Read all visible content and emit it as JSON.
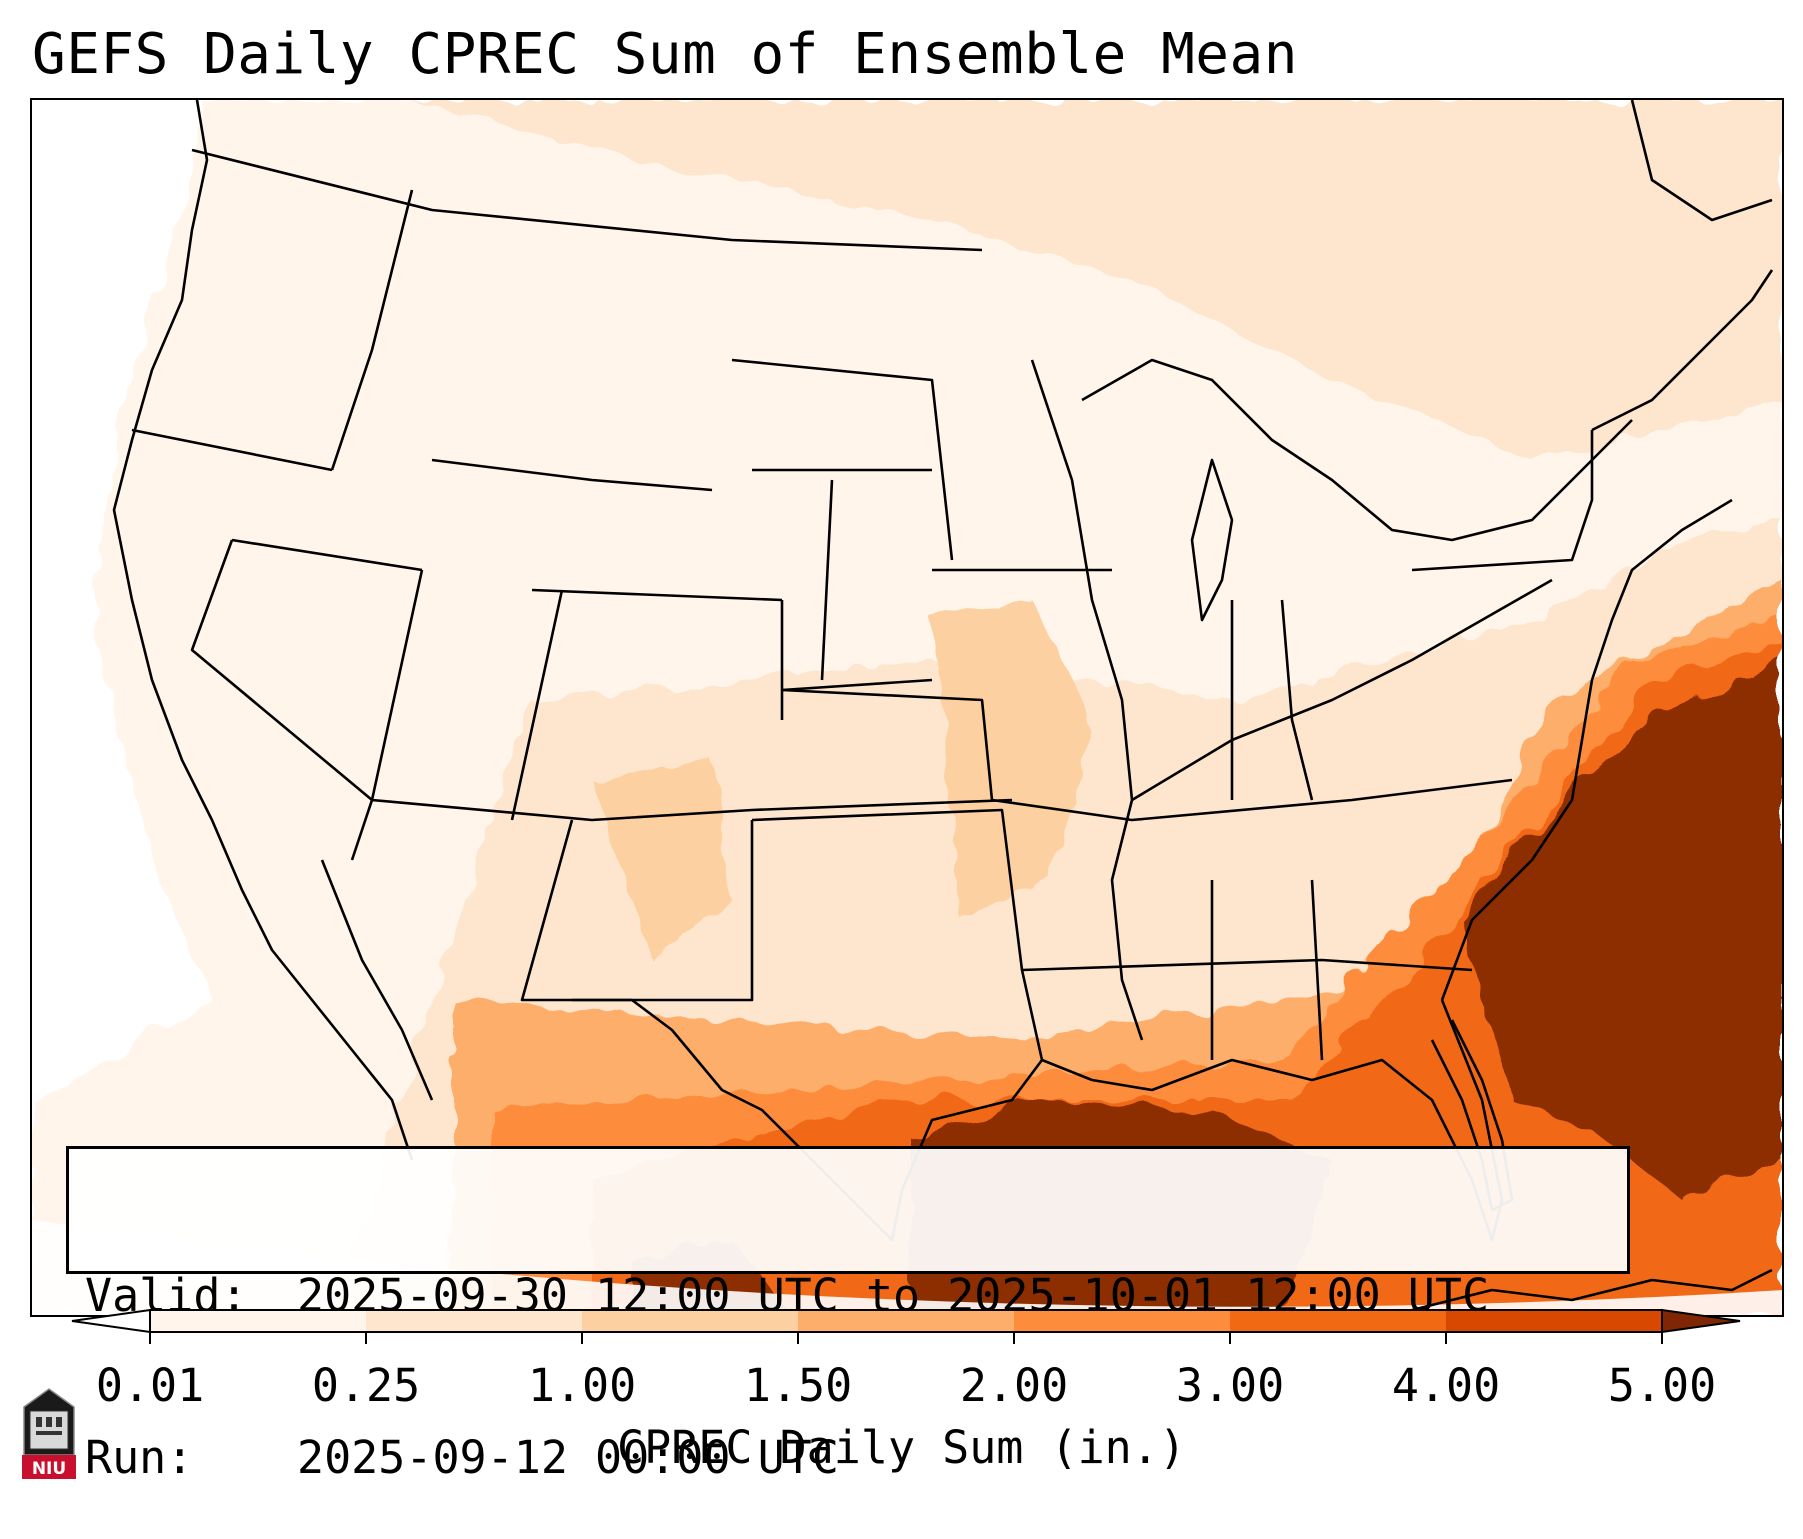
{
  "header": {
    "title": "GEFS Daily CPREC Sum of Ensemble Mean"
  },
  "valid_box": {
    "valid_label": "Valid:",
    "valid_value": "2025-09-30 12:00 UTC to 2025-10-01 12:00 UTC",
    "run_label": "Run:",
    "run_value": "2025-09-12 00:00 UTC"
  },
  "colorbar": {
    "label": "CPREC Daily Sum (in.)",
    "ticks": [
      "0.01",
      "0.25",
      "1.00",
      "1.50",
      "2.00",
      "3.00",
      "4.00",
      "5.00"
    ],
    "colors": [
      "#fff5eb",
      "#fee6ce",
      "#fdd0a2",
      "#fdae6b",
      "#fd8d3c",
      "#f16913",
      "#d94801",
      "#8c2d04"
    ],
    "under_color": "#ffffff",
    "over_color": "#7f2704"
  },
  "logo": {
    "text": "NIU",
    "color": "#c8102e",
    "icon": "niu-university-logo"
  },
  "map": {
    "region": "Contiguous United States",
    "projection": "lambert-conformal",
    "boundaries": [
      "state-borders",
      "coastlines",
      "great-lakes"
    ],
    "land_color": "#fff5eb",
    "ocean_heavy_color": "#7f2704"
  }
}
